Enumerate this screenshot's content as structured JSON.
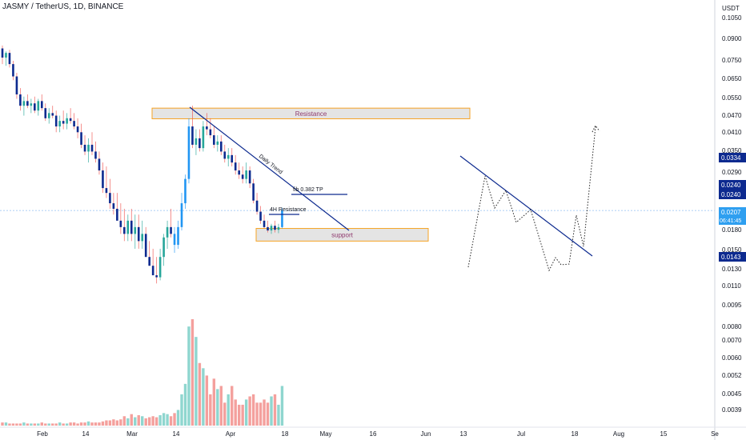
{
  "header": {
    "symbol": "JASMY / TetherUS, 1D, BINANCE"
  },
  "colors": {
    "up": "#26a69a",
    "down": "#ef5350",
    "blue_candle": "#2196f3",
    "navy": "#0d2a8f",
    "vol_up": "#8fd6cf",
    "vol_down": "#f4a09d",
    "zone_fill": "#e4e4e4",
    "zone_border": "#f6a324",
    "zone_text": "#8e3a6f"
  },
  "chart_data": {
    "type": "candlestick",
    "title": "JASMY / TetherUS, 1D, BINANCE",
    "price_scale": "log",
    "price_currency": "USDT",
    "y_ticks": [
      "0.1050",
      "0.0900",
      "0.0750",
      "0.0650",
      "0.0550",
      "0.0470",
      "0.0410",
      "0.0350",
      "0.0290",
      "0.0240",
      "0.0180",
      "0.0150",
      "0.0130",
      "0.0110",
      "0.0095",
      "0.0080",
      "0.0070",
      "0.0060",
      "0.0052",
      "0.0045",
      "0.0039"
    ],
    "x_ticks": [
      "Feb",
      "14",
      "Mar",
      "14",
      "Apr",
      "18",
      "May",
      "16",
      "Jun",
      "13",
      "Jul",
      "18",
      "Aug",
      "15",
      "Se"
    ],
    "price_labels": [
      {
        "value": "0.0334",
        "kind": "navy"
      },
      {
        "value": "0.0240",
        "kind": "navy"
      },
      {
        "value": "0.0240",
        "kind": "navy"
      },
      {
        "value": "0.0207",
        "kind": "current"
      },
      {
        "value": "06:41:45",
        "kind": "countdown"
      },
      {
        "value": "0.0143",
        "kind": "navy"
      }
    ],
    "current_price": 0.0207,
    "candles": [
      [
        0.081,
        0.083,
        0.071,
        0.075
      ],
      [
        0.075,
        0.079,
        0.07,
        0.078
      ],
      [
        0.078,
        0.08,
        0.069,
        0.071
      ],
      [
        0.071,
        0.073,
        0.062,
        0.064
      ],
      [
        0.064,
        0.066,
        0.053,
        0.055
      ],
      [
        0.055,
        0.058,
        0.048,
        0.05
      ],
      [
        0.05,
        0.054,
        0.046,
        0.052
      ],
      [
        0.052,
        0.055,
        0.049,
        0.05
      ],
      [
        0.05,
        0.053,
        0.047,
        0.051
      ],
      [
        0.051,
        0.054,
        0.047,
        0.048
      ],
      [
        0.048,
        0.053,
        0.046,
        0.052
      ],
      [
        0.052,
        0.055,
        0.048,
        0.049
      ],
      [
        0.049,
        0.051,
        0.044,
        0.045
      ],
      [
        0.045,
        0.049,
        0.043,
        0.047
      ],
      [
        0.047,
        0.05,
        0.045,
        0.046
      ],
      [
        0.046,
        0.048,
        0.04,
        0.042
      ],
      [
        0.042,
        0.046,
        0.04,
        0.044
      ],
      [
        0.044,
        0.048,
        0.041,
        0.043
      ],
      [
        0.043,
        0.047,
        0.041,
        0.045
      ],
      [
        0.045,
        0.049,
        0.043,
        0.044
      ],
      [
        0.044,
        0.047,
        0.041,
        0.042
      ],
      [
        0.042,
        0.045,
        0.038,
        0.04
      ],
      [
        0.04,
        0.043,
        0.035,
        0.036
      ],
      [
        0.036,
        0.039,
        0.033,
        0.034
      ],
      [
        0.034,
        0.038,
        0.031,
        0.036
      ],
      [
        0.036,
        0.04,
        0.033,
        0.034
      ],
      [
        0.034,
        0.037,
        0.031,
        0.032
      ],
      [
        0.032,
        0.034,
        0.028,
        0.029
      ],
      [
        0.029,
        0.031,
        0.024,
        0.025
      ],
      [
        0.025,
        0.03,
        0.023,
        0.024
      ],
      [
        0.024,
        0.027,
        0.021,
        0.022
      ],
      [
        0.022,
        0.024,
        0.02,
        0.021
      ],
      [
        0.021,
        0.024,
        0.019,
        0.019
      ],
      [
        0.019,
        0.022,
        0.017,
        0.018
      ],
      [
        0.018,
        0.021,
        0.016,
        0.017
      ],
      [
        0.017,
        0.02,
        0.016,
        0.019
      ],
      [
        0.019,
        0.021,
        0.016,
        0.017
      ],
      [
        0.017,
        0.02,
        0.015,
        0.018
      ],
      [
        0.018,
        0.02,
        0.015,
        0.016
      ],
      [
        0.016,
        0.019,
        0.015,
        0.017
      ],
      [
        0.017,
        0.018,
        0.014,
        0.014
      ],
      [
        0.014,
        0.016,
        0.013,
        0.013
      ],
      [
        0.013,
        0.015,
        0.012,
        0.012
      ],
      [
        0.012,
        0.014,
        0.0112,
        0.0118
      ],
      [
        0.0118,
        0.015,
        0.0115,
        0.014
      ],
      [
        0.014,
        0.017,
        0.013,
        0.0165
      ],
      [
        0.0165,
        0.019,
        0.015,
        0.018
      ],
      [
        0.018,
        0.021,
        0.0165,
        0.017
      ],
      [
        0.017,
        0.018,
        0.0145,
        0.0155
      ],
      [
        0.0155,
        0.019,
        0.015,
        0.018
      ],
      [
        0.018,
        0.024,
        0.0175,
        0.022
      ],
      [
        0.022,
        0.028,
        0.021,
        0.027
      ],
      [
        0.027,
        0.045,
        0.026,
        0.042
      ],
      [
        0.042,
        0.05,
        0.035,
        0.036
      ],
      [
        0.036,
        0.041,
        0.033,
        0.038
      ],
      [
        0.038,
        0.041,
        0.034,
        0.035
      ],
      [
        0.035,
        0.044,
        0.034,
        0.042
      ],
      [
        0.042,
        0.047,
        0.039,
        0.041
      ],
      [
        0.041,
        0.045,
        0.038,
        0.039
      ],
      [
        0.039,
        0.042,
        0.035,
        0.036
      ],
      [
        0.036,
        0.039,
        0.034,
        0.037
      ],
      [
        0.037,
        0.039,
        0.033,
        0.034
      ],
      [
        0.034,
        0.036,
        0.031,
        0.032
      ],
      [
        0.032,
        0.035,
        0.03,
        0.033
      ],
      [
        0.033,
        0.035,
        0.03,
        0.031
      ],
      [
        0.031,
        0.033,
        0.028,
        0.029
      ],
      [
        0.029,
        0.031,
        0.027,
        0.028
      ],
      [
        0.028,
        0.03,
        0.026,
        0.027
      ],
      [
        0.027,
        0.031,
        0.026,
        0.029
      ],
      [
        0.029,
        0.03,
        0.025,
        0.026
      ],
      [
        0.026,
        0.027,
        0.022,
        0.0225
      ],
      [
        0.0225,
        0.024,
        0.02,
        0.0205
      ],
      [
        0.0205,
        0.0215,
        0.0185,
        0.019
      ],
      [
        0.019,
        0.02,
        0.0178,
        0.018
      ],
      [
        0.018,
        0.019,
        0.0172,
        0.0175
      ],
      [
        0.0175,
        0.0185,
        0.017,
        0.0182
      ],
      [
        0.0182,
        0.019,
        0.0172,
        0.0176
      ],
      [
        0.0176,
        0.0185,
        0.0171,
        0.018
      ],
      [
        0.018,
        0.0212,
        0.0178,
        0.0207
      ]
    ],
    "volume": [
      3,
      3,
      2,
      2,
      2,
      2,
      3,
      2,
      2,
      2,
      2,
      3,
      2,
      2,
      2,
      2,
      3,
      2,
      2,
      3,
      3,
      2,
      3,
      3,
      4,
      3,
      3,
      3,
      4,
      5,
      5,
      6,
      5,
      6,
      9,
      7,
      11,
      8,
      10,
      9,
      7,
      8,
      9,
      8,
      10,
      12,
      11,
      9,
      12,
      15,
      30,
      40,
      95,
      102,
      85,
      60,
      55,
      48,
      30,
      45,
      35,
      38,
      22,
      30,
      38,
      25,
      20,
      20,
      25,
      28,
      30,
      22,
      22,
      25,
      22,
      28,
      30,
      20,
      38
    ],
    "zones": [
      {
        "label": "Resistance",
        "top": 0.049,
        "bottom": 0.0448
      },
      {
        "label": "support",
        "top": 0.0178,
        "bottom": 0.016
      }
    ],
    "annotations": [
      {
        "text": "Daily Trend"
      },
      {
        "text": "fib 0.382 TP"
      },
      {
        "text": "4H Resistance"
      }
    ]
  }
}
